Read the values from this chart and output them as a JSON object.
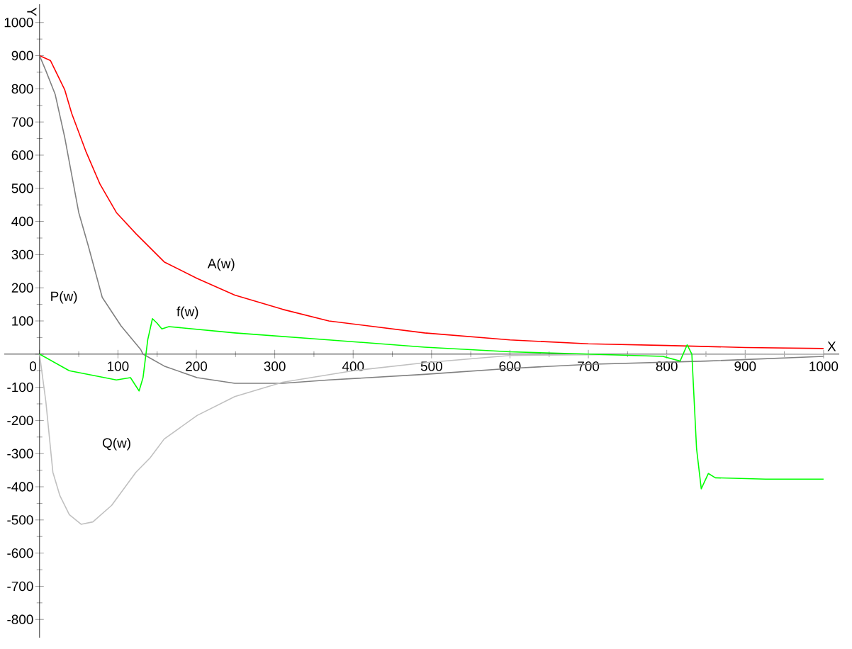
{
  "chart_data": {
    "type": "line",
    "xlabel": "X",
    "ylabel": "Y",
    "xlim": [
      -45,
      1020
    ],
    "ylim": [
      -855,
      1055
    ],
    "xticks": [
      0,
      100,
      200,
      300,
      400,
      500,
      600,
      700,
      800,
      900,
      1000
    ],
    "yticks": [
      -800,
      -700,
      -600,
      -500,
      -400,
      -300,
      -200,
      -100,
      {
        "value": 0,
        "label": null
      },
      100,
      200,
      300,
      400,
      500,
      600,
      700,
      800,
      900,
      1000
    ],
    "series": [
      {
        "name": "A(w)",
        "color": "#ff0000",
        "x": [
          0,
          14,
          32,
          41,
          59,
          77,
          98,
          123,
          159,
          201,
          249,
          310,
          369,
          491,
          600,
          700,
          800,
          900,
          1000
        ],
        "values": [
          900,
          885,
          798,
          726,
          612,
          513,
          427,
          363,
          278,
          228,
          178,
          135,
          100,
          64,
          43,
          31,
          26,
          20,
          17
        ]
      },
      {
        "name": "P(w)",
        "color": "#808080",
        "x": [
          0,
          8,
          20,
          32,
          41,
          50,
          62,
          80,
          104,
          129,
          132,
          159,
          201,
          249,
          310,
          369,
          491,
          600,
          700,
          850,
          1000
        ],
        "values": [
          900,
          855,
          783,
          655,
          541,
          427,
          328,
          171,
          85,
          14,
          0,
          -36,
          -71,
          -88,
          -88,
          -78,
          -61,
          -43,
          -31,
          -21,
          -7
        ]
      },
      {
        "name": "Q(w)",
        "color": "#c0c0c0",
        "x": [
          0,
          8,
          17,
          26,
          38,
          53,
          68,
          92,
          123,
          141,
          159,
          201,
          249,
          310,
          400,
          491,
          600,
          700,
          850,
          1000
        ],
        "values": [
          0,
          -142,
          -356,
          -427,
          -484,
          -513,
          -506,
          -456,
          -356,
          -313,
          -256,
          -185,
          -128,
          -85,
          -50,
          -26,
          -4,
          -2,
          -1,
          0
        ]
      },
      {
        "name": "f(w)",
        "color": "#00ff00",
        "x": [
          0,
          38,
          98,
          116,
          127,
          132,
          138,
          144,
          150,
          156,
          165,
          249,
          369,
          491,
          600,
          700,
          795,
          817,
          826,
          832,
          838,
          844,
          853,
          862,
          926,
          1000
        ],
        "values": [
          0,
          -50,
          -78,
          -71,
          -111,
          -71,
          43,
          107,
          93,
          76,
          83,
          64,
          43,
          21,
          7,
          0,
          -7,
          -21,
          28,
          0,
          -285,
          -406,
          -360,
          -373,
          -377,
          -377
        ]
      }
    ]
  }
}
